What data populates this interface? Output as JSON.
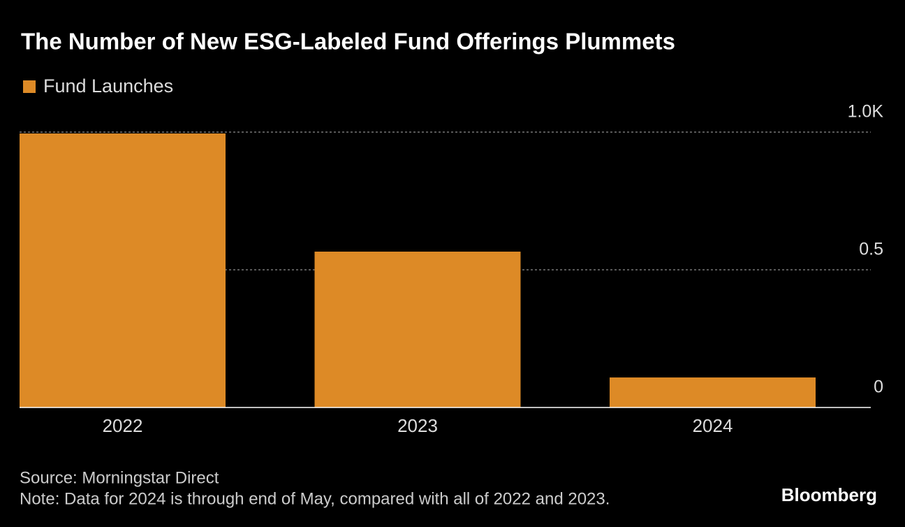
{
  "chart_data": {
    "type": "bar",
    "title": "The Number of New ESG-Labeled Fund Offerings Plummets",
    "legend": "Fund Launches",
    "categories": [
      "2022",
      "2023",
      "2024"
    ],
    "values": [
      995,
      566,
      109
    ],
    "color": "#dd8a26",
    "ylim": [
      0,
      1000
    ],
    "yticks": [
      0,
      {
        "value": 500,
        "label": "0.5"
      },
      {
        "value": 1000,
        "label": "1.0K"
      }
    ],
    "grid": true,
    "source": "Source: Morningstar Direct",
    "note": "Note: Data for 2024 is through end of May, compared with all of 2022 and 2023."
  },
  "brand": "Bloomberg"
}
